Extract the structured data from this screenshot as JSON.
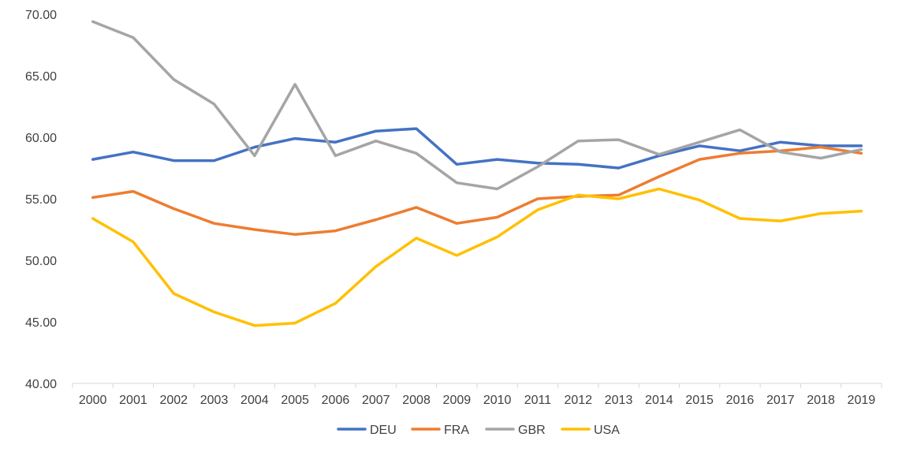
{
  "chart_data": {
    "type": "line",
    "title": "",
    "xlabel": "",
    "ylabel": "",
    "x": [
      "2000",
      "2001",
      "2002",
      "2003",
      "2004",
      "2005",
      "2006",
      "2007",
      "2008",
      "2009",
      "2010",
      "2011",
      "2012",
      "2013",
      "2014",
      "2015",
      "2016",
      "2017",
      "2018",
      "2019"
    ],
    "ylim": [
      40,
      70
    ],
    "yticks": [
      "40.00",
      "45.00",
      "50.00",
      "55.00",
      "60.00",
      "65.00",
      "70.00"
    ],
    "grid": false,
    "legend": "bottom",
    "series": [
      {
        "name": "DEU",
        "color": "#4472C4",
        "values": [
          58.2,
          58.8,
          58.1,
          58.1,
          59.2,
          59.9,
          59.6,
          60.5,
          60.7,
          57.8,
          58.2,
          57.9,
          57.8,
          57.5,
          58.5,
          59.3,
          58.9,
          59.6,
          59.3,
          59.3
        ]
      },
      {
        "name": "FRA",
        "color": "#ED7D31",
        "values": [
          55.1,
          55.6,
          54.2,
          53.0,
          52.5,
          52.1,
          52.4,
          53.3,
          54.3,
          53.0,
          53.5,
          55.0,
          55.2,
          55.3,
          56.8,
          58.2,
          58.7,
          58.9,
          59.2,
          58.7
        ]
      },
      {
        "name": "GBR",
        "color": "#A5A5A5",
        "values": [
          69.4,
          68.1,
          64.7,
          62.7,
          58.5,
          64.3,
          58.5,
          59.7,
          58.7,
          56.3,
          55.8,
          57.6,
          59.7,
          59.8,
          58.6,
          59.6,
          60.6,
          58.8,
          58.3,
          59.0
        ]
      },
      {
        "name": "USA",
        "color": "#FFC000",
        "values": [
          53.4,
          51.5,
          47.3,
          45.8,
          44.7,
          44.9,
          46.5,
          49.5,
          51.8,
          50.4,
          51.9,
          54.1,
          55.3,
          55.0,
          55.8,
          54.9,
          53.4,
          53.2,
          53.8,
          54.0
        ]
      }
    ]
  }
}
